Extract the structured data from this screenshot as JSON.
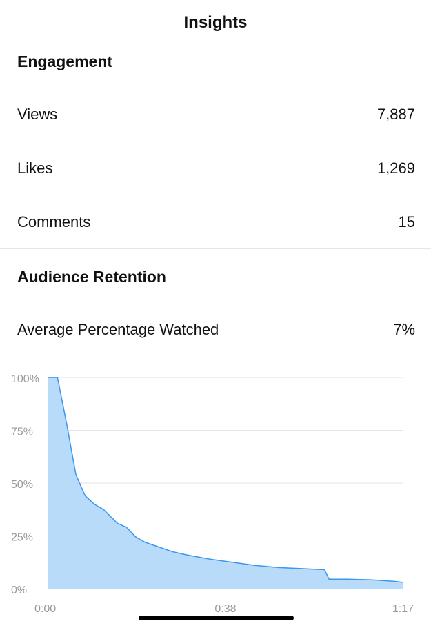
{
  "header": {
    "title": "Insights"
  },
  "engagement": {
    "title": "Engagement",
    "rows": [
      {
        "label": "Views",
        "value": "7,887"
      },
      {
        "label": "Likes",
        "value": "1,269"
      },
      {
        "label": "Comments",
        "value": "15"
      }
    ]
  },
  "retention": {
    "title": "Audience Retention",
    "avg_label": "Average Percentage Watched",
    "avg_value": "7%"
  },
  "chart_data": {
    "type": "area",
    "x_unit": "seconds",
    "x": [
      0,
      2,
      4,
      6,
      8,
      10,
      12,
      15,
      17,
      19,
      21,
      25,
      27,
      30,
      35,
      40,
      45,
      50,
      55,
      60,
      61,
      65,
      70,
      75,
      77
    ],
    "y": [
      100,
      100,
      78,
      54,
      44,
      40,
      37.5,
      31,
      29,
      24.5,
      22,
      19,
      17.5,
      16,
      14,
      12.5,
      11,
      10,
      9.5,
      9,
      4.5,
      4.5,
      4.2,
      3.5,
      3
    ],
    "ylim": [
      0,
      100
    ],
    "xlim": [
      0,
      77
    ],
    "y_ticks": [
      "100%",
      "75%",
      "50%",
      "25%",
      "0%"
    ],
    "x_ticks": [
      "0:00",
      "0:38",
      "1:17"
    ],
    "fill_color": "#b8dbfa",
    "line_color": "#3897f0",
    "grid": true
  }
}
